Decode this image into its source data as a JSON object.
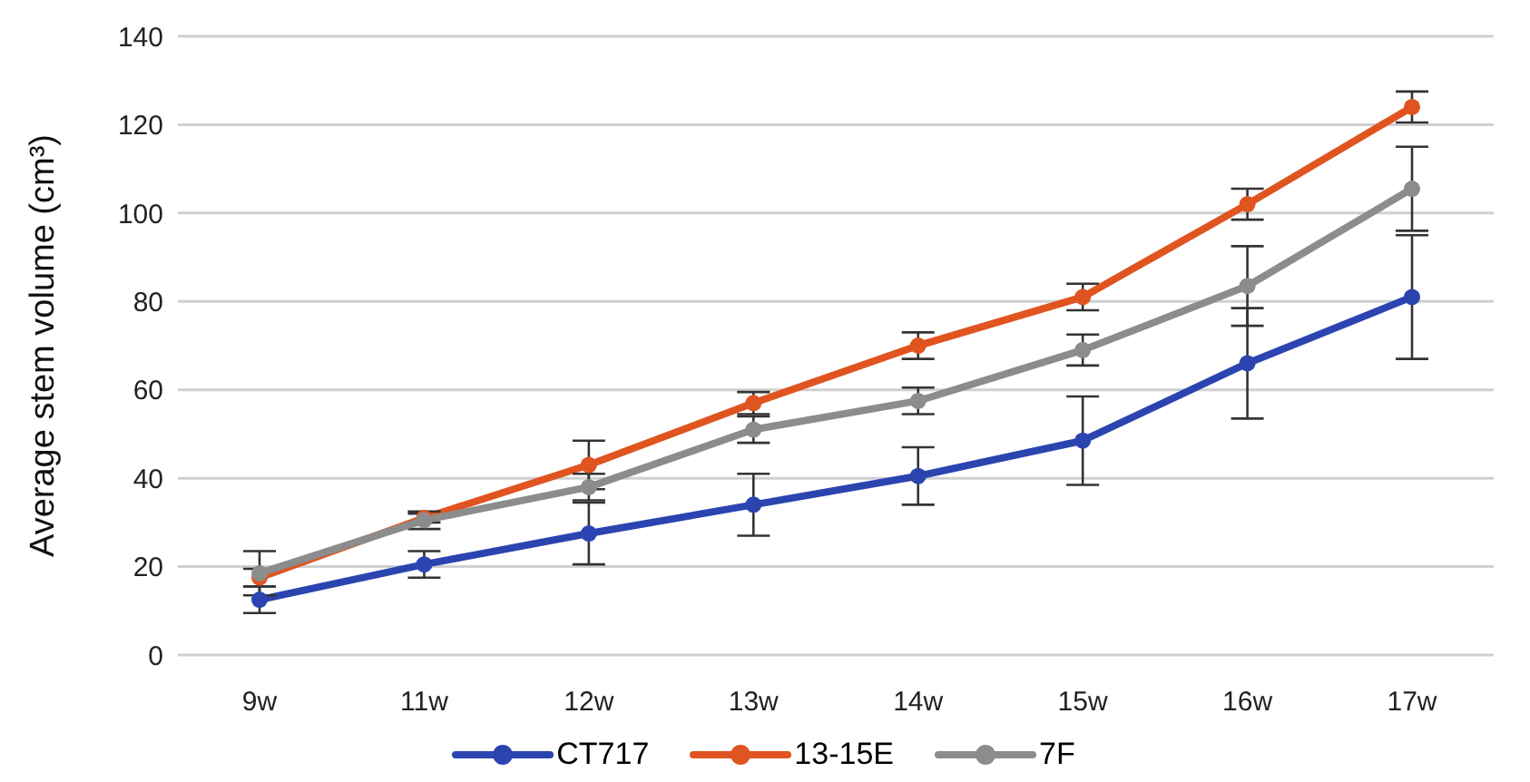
{
  "chart_data": {
    "type": "line",
    "ylabel": "Average stem volume (cm³)",
    "categories": [
      "9w",
      "11w",
      "12w",
      "13w",
      "14w",
      "15w",
      "16w",
      "17w"
    ],
    "series": [
      {
        "name": "CT717",
        "color": "#2b44b0",
        "values": [
          12.5,
          20.5,
          27.5,
          34,
          40.5,
          48.5,
          66,
          81
        ],
        "errors": [
          3,
          3,
          7,
          7,
          6.5,
          10,
          12.5,
          14
        ]
      },
      {
        "name": "13-15E",
        "color": "#e0541f",
        "values": [
          17.5,
          31,
          43,
          57,
          70,
          81,
          102,
          124
        ],
        "errors": [
          2,
          1,
          5.5,
          2.5,
          3,
          3,
          3.5,
          3.5
        ]
      },
      {
        "name": "7F",
        "color": "#8c8c8c",
        "values": [
          18.5,
          30.5,
          38,
          51,
          57.5,
          69,
          83.5,
          105.5
        ],
        "errors": [
          5,
          2,
          3,
          3,
          3,
          3.5,
          9,
          9.5
        ]
      }
    ],
    "ylim": [
      0,
      140
    ],
    "yticks": [
      0,
      20,
      40,
      60,
      80,
      100,
      120,
      140
    ],
    "grid": "y",
    "legend": "bottom",
    "marker": "circle",
    "line_style": "solid"
  }
}
